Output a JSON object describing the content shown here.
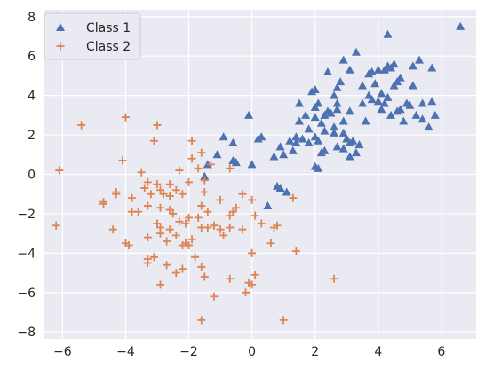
{
  "chart_data": {
    "type": "scatter",
    "title": "",
    "xlabel": "",
    "ylabel": "",
    "xlim": [
      -6.6,
      7.1
    ],
    "ylim": [
      -8.35,
      8.35
    ],
    "x_ticks": [
      -6,
      -4,
      -2,
      0,
      2,
      4,
      6
    ],
    "y_ticks": [
      -8,
      -6,
      -4,
      -2,
      0,
      2,
      4,
      6,
      8
    ],
    "grid": true,
    "background": "#EAEAF2",
    "legend_position": "upper left",
    "series": [
      {
        "name": "Class 1",
        "marker": "triangle",
        "color": "#4C72B0",
        "points": [
          [
            6.6,
            7.5
          ],
          [
            4.3,
            7.1
          ],
          [
            5.3,
            5.8
          ],
          [
            5.1,
            5.5
          ],
          [
            4.5,
            5.6
          ],
          [
            3.3,
            6.2
          ],
          [
            2.9,
            5.8
          ],
          [
            4.3,
            5.5
          ],
          [
            4.4,
            5.4
          ],
          [
            4.2,
            5.3
          ],
          [
            4.0,
            5.3
          ],
          [
            3.8,
            5.2
          ],
          [
            5.7,
            5.4
          ],
          [
            5.1,
            4.5
          ],
          [
            3.7,
            5.1
          ],
          [
            3.5,
            4.5
          ],
          [
            3.1,
            5.3
          ],
          [
            2.4,
            5.2
          ],
          [
            2.7,
            4.4
          ],
          [
            2.8,
            4.7
          ],
          [
            2.6,
            4.0
          ],
          [
            2.0,
            4.3
          ],
          [
            1.9,
            4.2
          ],
          [
            3.9,
            4.6
          ],
          [
            4.6,
            4.7
          ],
          [
            4.7,
            4.9
          ],
          [
            4.5,
            4.5
          ],
          [
            4.1,
            4.1
          ],
          [
            4.3,
            3.9
          ],
          [
            3.7,
            4.0
          ],
          [
            3.8,
            3.8
          ],
          [
            3.5,
            3.6
          ],
          [
            4.0,
            3.7
          ],
          [
            4.2,
            3.6
          ],
          [
            4.1,
            3.3
          ],
          [
            4.4,
            3.0
          ],
          [
            4.6,
            3.2
          ],
          [
            3.6,
            2.7
          ],
          [
            3.1,
            3.2
          ],
          [
            2.7,
            3.3
          ],
          [
            2.5,
            3.1
          ],
          [
            2.4,
            3.2
          ],
          [
            2.7,
            3.6
          ],
          [
            2.3,
            3.0
          ],
          [
            2.1,
            3.6
          ],
          [
            2.0,
            3.4
          ],
          [
            1.5,
            3.6
          ],
          [
            1.7,
            3.0
          ],
          [
            1.5,
            2.7
          ],
          [
            2.0,
            2.9
          ],
          [
            2.2,
            2.6
          ],
          [
            2.3,
            2.2
          ],
          [
            1.8,
            2.3
          ],
          [
            1.6,
            1.8
          ],
          [
            1.4,
            1.9
          ],
          [
            2.6,
            2.4
          ],
          [
            2.9,
            2.7
          ],
          [
            2.9,
            2.1
          ],
          [
            3.0,
            1.8
          ],
          [
            3.2,
            1.7
          ],
          [
            3.1,
            1.6
          ],
          [
            2.7,
            1.4
          ],
          [
            2.6,
            2.1
          ],
          [
            2.1,
            1.7
          ],
          [
            2.0,
            1.9
          ],
          [
            1.8,
            1.6
          ],
          [
            1.4,
            1.6
          ],
          [
            1.3,
            1.2
          ],
          [
            2.2,
            1.1
          ],
          [
            2.3,
            1.2
          ],
          [
            2.9,
            1.3
          ],
          [
            3.1,
            0.9
          ],
          [
            3.3,
            1.1
          ],
          [
            3.4,
            1.5
          ],
          [
            4.8,
            2.7
          ],
          [
            5.0,
            3.5
          ],
          [
            5.2,
            3.0
          ],
          [
            5.4,
            2.8
          ],
          [
            5.7,
            3.7
          ],
          [
            5.8,
            3.0
          ],
          [
            5.6,
            2.4
          ],
          [
            5.4,
            3.6
          ],
          [
            4.9,
            3.6
          ],
          [
            4.7,
            3.3
          ],
          [
            1.2,
            1.7
          ],
          [
            0.9,
            1.4
          ],
          [
            1.0,
            1.0
          ],
          [
            0.7,
            0.9
          ],
          [
            0.2,
            1.8
          ],
          [
            0.3,
            1.9
          ],
          [
            -0.1,
            3.0
          ],
          [
            -0.6,
            0.7
          ],
          [
            -0.6,
            1.6
          ],
          [
            -0.9,
            1.9
          ],
          [
            -1.1,
            1.0
          ],
          [
            -1.4,
            0.5
          ],
          [
            -0.5,
            0.6
          ],
          [
            -1.5,
            -0.1
          ],
          [
            2.0,
            0.4
          ],
          [
            2.1,
            0.3
          ],
          [
            1.1,
            -0.9
          ],
          [
            0.9,
            -0.7
          ],
          [
            0.8,
            -0.6
          ],
          [
            0.5,
            -1.6
          ],
          [
            0.0,
            0.5
          ]
        ]
      },
      {
        "name": "Class 2",
        "marker": "plus",
        "color": "#DD8452",
        "points": [
          [
            -6.1,
            0.2
          ],
          [
            -6.2,
            -2.6
          ],
          [
            -5.4,
            2.5
          ],
          [
            -4.0,
            2.9
          ],
          [
            -4.1,
            0.7
          ],
          [
            -3.0,
            2.5
          ],
          [
            -3.1,
            1.7
          ],
          [
            -1.9,
            1.7
          ],
          [
            -1.9,
            0.8
          ],
          [
            -2.3,
            0.2
          ],
          [
            -3.5,
            0.1
          ],
          [
            -3.4,
            -0.7
          ],
          [
            -3.3,
            -0.4
          ],
          [
            -3.0,
            -0.5
          ],
          [
            -2.9,
            -0.8
          ],
          [
            -2.8,
            -1.0
          ],
          [
            -2.6,
            -0.5
          ],
          [
            -2.4,
            -0.8
          ],
          [
            -2.2,
            -1.0
          ],
          [
            -2.0,
            -0.4
          ],
          [
            -1.7,
            0.3
          ],
          [
            -1.5,
            -0.3
          ],
          [
            -1.5,
            -0.9
          ],
          [
            -1.3,
            0.5
          ],
          [
            -1.6,
            1.1
          ],
          [
            -0.7,
            0.3
          ],
          [
            -0.5,
            -1.7
          ],
          [
            -0.6,
            -1.9
          ],
          [
            -0.7,
            -2.1
          ],
          [
            -1.4,
            -1.9
          ],
          [
            -1.6,
            -1.6
          ],
          [
            -1.7,
            -2.2
          ],
          [
            -2.0,
            -2.2
          ],
          [
            -2.1,
            -2.5
          ],
          [
            -2.3,
            -2.4
          ],
          [
            -2.5,
            -2.0
          ],
          [
            -2.6,
            -1.8
          ],
          [
            -2.9,
            -1.7
          ],
          [
            -3.3,
            -1.6
          ],
          [
            -3.6,
            -1.9
          ],
          [
            -3.8,
            -1.9
          ],
          [
            -4.3,
            -1.0
          ],
          [
            -4.7,
            -1.4
          ],
          [
            -4.7,
            -1.5
          ],
          [
            -4.4,
            -2.8
          ],
          [
            -4.0,
            -3.5
          ],
          [
            -3.9,
            -3.6
          ],
          [
            -3.3,
            -3.2
          ],
          [
            -3.3,
            -4.3
          ],
          [
            -3.3,
            -4.5
          ],
          [
            -3.1,
            -4.2
          ],
          [
            -3.0,
            -2.5
          ],
          [
            -2.9,
            -2.7
          ],
          [
            -2.9,
            -3.0
          ],
          [
            -2.7,
            -3.4
          ],
          [
            -2.6,
            -2.8
          ],
          [
            -2.4,
            -3.1
          ],
          [
            -2.2,
            -3.6
          ],
          [
            -2.1,
            -3.5
          ],
          [
            -2.0,
            -3.6
          ],
          [
            -1.9,
            -3.3
          ],
          [
            -1.8,
            -4.2
          ],
          [
            -1.6,
            -2.7
          ],
          [
            -1.4,
            -2.7
          ],
          [
            -1.2,
            -2.6
          ],
          [
            -1.0,
            -2.8
          ],
          [
            -0.9,
            -3.1
          ],
          [
            -0.7,
            -2.7
          ],
          [
            -0.3,
            -2.8
          ],
          [
            -1.6,
            -4.7
          ],
          [
            -1.5,
            -5.2
          ],
          [
            -2.2,
            -4.8
          ],
          [
            -2.7,
            -4.6
          ],
          [
            -2.9,
            -5.6
          ],
          [
            -2.4,
            -5.0
          ],
          [
            -1.6,
            -7.4
          ],
          [
            -1.2,
            -6.2
          ],
          [
            -0.7,
            -5.3
          ],
          [
            -0.2,
            -6.0
          ],
          [
            -0.1,
            -5.5
          ],
          [
            0.0,
            -5.6
          ],
          [
            0.1,
            -5.1
          ],
          [
            0.0,
            -4.0
          ],
          [
            0.6,
            -3.5
          ],
          [
            0.7,
            -2.7
          ],
          [
            0.8,
            -2.6
          ],
          [
            1.0,
            -7.4
          ],
          [
            1.4,
            -3.9
          ],
          [
            1.3,
            -1.2
          ],
          [
            2.6,
            -5.3
          ],
          [
            0.3,
            -2.5
          ],
          [
            0.1,
            -2.1
          ],
          [
            0.0,
            -1.3
          ],
          [
            -1.0,
            -1.3
          ],
          [
            -0.3,
            -1.0
          ],
          [
            -2.6,
            -1.1
          ],
          [
            -3.2,
            -1.0
          ],
          [
            -3.8,
            -1.2
          ],
          [
            -4.3,
            -0.9
          ],
          [
            -1.2,
            -2.6
          ]
        ]
      }
    ]
  }
}
